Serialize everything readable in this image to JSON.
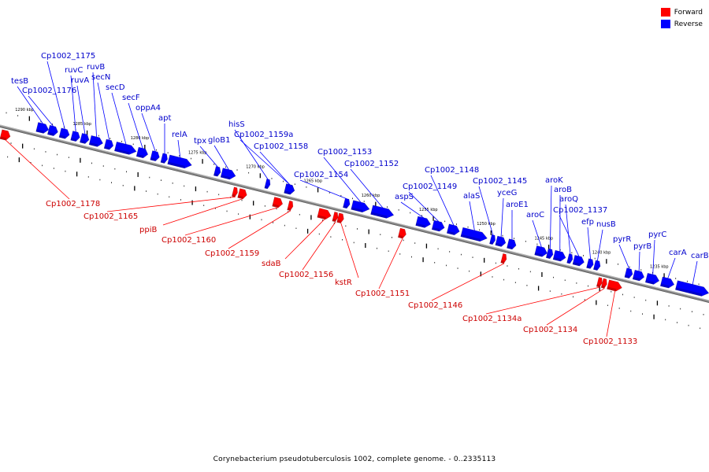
{
  "colors": {
    "forward": "#ff0000",
    "reverse": "#0000ff",
    "backbone": "#808080",
    "forward_label": "#cc0000",
    "reverse_label": "#0000cc"
  },
  "legend": [
    {
      "label": "Forward",
      "color": "#ff0000"
    },
    {
      "label": "Reverse",
      "color": "#0000ff"
    }
  ],
  "caption": "Corynebacterium pseudotuberculosis 1002, complete genome. - 0..2335113",
  "scale": {
    "start_kbp": 1290,
    "end_kbp": 1232,
    "tick_step_kbp": 5,
    "labels": [
      "1290 kbp",
      "1285 kbp",
      "1280 kbp",
      "1275 kbp",
      "1270 kbp",
      "1265 kbp",
      "1260 kbp",
      "1255 kbp",
      "1250 kbp",
      "1245 kbp",
      "1240 kbp",
      "1235 kbp"
    ]
  },
  "reverse_genes": [
    {
      "name": "tesB",
      "start": 1289.2,
      "end": 1288.2
    },
    {
      "name": "Cp1002_1176",
      "start": 1288.2,
      "end": 1287.4
    },
    {
      "name": "Cp1002_1175",
      "start": 1287.2,
      "end": 1286.4
    },
    {
      "name": "ruvC",
      "start": 1286.2,
      "end": 1285.5
    },
    {
      "name": "ruvA",
      "start": 1285.4,
      "end": 1284.7
    },
    {
      "name": "ruvB",
      "start": 1284.6,
      "end": 1283.5
    },
    {
      "name": "secN",
      "start": 1283.3,
      "end": 1282.6
    },
    {
      "name": "secD",
      "start": 1282.4,
      "end": 1280.6
    },
    {
      "name": "secF",
      "start": 1280.5,
      "end": 1279.6
    },
    {
      "name": "oppA4",
      "start": 1279.3,
      "end": 1278.6
    },
    {
      "name": "apt",
      "start": 1278.4,
      "end": 1277.9
    },
    {
      "name": "relA",
      "start": 1277.8,
      "end": 1275.8
    },
    {
      "name": "tpx",
      "start": 1273.8,
      "end": 1273.3
    },
    {
      "name": "gloB1",
      "start": 1273.2,
      "end": 1272.0
    },
    {
      "name": "hisS",
      "start": 1269.4,
      "end": 1269.1
    },
    {
      "name": "Cp1002_1159a",
      "start": 1267.7,
      "end": 1266.9
    },
    {
      "name": "Cp1002_1158",
      "start": 1267.7,
      "end": 1266.9
    },
    {
      "name": "Cp1002_1154",
      "start": 1262.6,
      "end": 1262.1
    },
    {
      "name": "Cp1002_1153",
      "start": 1261.9,
      "end": 1260.4
    },
    {
      "name": "Cp1002_1152",
      "start": 1260.2,
      "end": 1258.3
    },
    {
      "name": "aspS",
      "start": 1256.3,
      "end": 1255.1
    },
    {
      "name": "Cp1002_1149",
      "start": 1254.9,
      "end": 1253.9
    },
    {
      "name": "Cp1002_1148",
      "start": 1253.6,
      "end": 1252.6
    },
    {
      "name": "alaS",
      "start": 1252.4,
      "end": 1250.2
    },
    {
      "name": "Cp1002_1145",
      "start": 1249.9,
      "end": 1249.6
    },
    {
      "name": "yceG",
      "start": 1249.4,
      "end": 1248.6
    },
    {
      "name": "aroE1",
      "start": 1248.4,
      "end": 1247.7
    },
    {
      "name": "aroC",
      "start": 1246.0,
      "end": 1245.0
    },
    {
      "name": "aroK",
      "start": 1245.0,
      "end": 1244.5
    },
    {
      "name": "aroB",
      "start": 1244.4,
      "end": 1243.4
    },
    {
      "name": "aroQ",
      "start": 1243.2,
      "end": 1242.8
    },
    {
      "name": "Cp1002_1137",
      "start": 1242.7,
      "end": 1241.8
    },
    {
      "name": "efp",
      "start": 1241.5,
      "end": 1241.0
    },
    {
      "name": "nusB",
      "start": 1240.9,
      "end": 1240.4
    },
    {
      "name": "pyrR",
      "start": 1238.2,
      "end": 1237.6
    },
    {
      "name": "pyrB",
      "start": 1237.5,
      "end": 1236.6
    },
    {
      "name": "pyrC",
      "start": 1236.4,
      "end": 1235.3
    },
    {
      "name": "carA",
      "start": 1235.1,
      "end": 1234.0
    },
    {
      "name": "carB",
      "start": 1233.8,
      "end": 1231.0
    }
  ],
  "forward_genes": [
    {
      "name": "Cp1002_1178",
      "start": 1292.0,
      "end": 1291.2
    },
    {
      "name": "Cp1002_1165",
      "start": 1271.9,
      "end": 1271.5
    },
    {
      "name": "ppiB",
      "start": 1271.4,
      "end": 1270.7
    },
    {
      "name": "Cp1002_1160",
      "start": 1268.4,
      "end": 1267.6
    },
    {
      "name": "Cp1002_1159",
      "start": 1267.1,
      "end": 1266.7
    },
    {
      "name": "sdaB",
      "start": 1264.5,
      "end": 1263.4
    },
    {
      "name": "Cp1002_1156",
      "start": 1263.2,
      "end": 1262.9
    },
    {
      "name": "kstR",
      "start": 1262.8,
      "end": 1262.3
    },
    {
      "name": "Cp1002_1151",
      "start": 1257.5,
      "end": 1256.9
    },
    {
      "name": "Cp1002_1146",
      "start": 1248.6,
      "end": 1248.4
    },
    {
      "name": "Cp1002_1134a",
      "start": 1240.3,
      "end": 1240.0
    },
    {
      "name": "Cp1002_1134",
      "start": 1239.9,
      "end": 1239.5
    },
    {
      "name": "Cp1002_1133",
      "start": 1239.4,
      "end": 1238.2
    }
  ]
}
